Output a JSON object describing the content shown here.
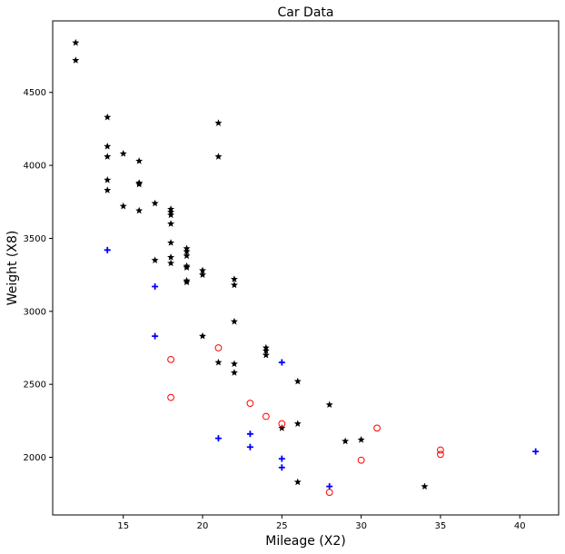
{
  "chart_data": {
    "type": "scatter",
    "title": "Car Data",
    "xlabel": "Mileage (X2)",
    "ylabel": "Weight (X8)",
    "xlim": [
      10.55,
      42.45
    ],
    "ylim": [
      1605,
      4990
    ],
    "xticks": [
      15,
      20,
      25,
      30,
      35,
      40
    ],
    "yticks": [
      2000,
      2500,
      3000,
      3500,
      4000,
      4500
    ],
    "grid": false,
    "series": [
      {
        "marker": "star",
        "color": "#000000",
        "points": [
          [
            12,
            4840
          ],
          [
            12,
            4720
          ],
          [
            14,
            4330
          ],
          [
            14,
            4130
          ],
          [
            14,
            4060
          ],
          [
            14,
            3900
          ],
          [
            14,
            3830
          ],
          [
            15,
            4080
          ],
          [
            15,
            3720
          ],
          [
            16,
            4030
          ],
          [
            16,
            3880
          ],
          [
            16,
            3870
          ],
          [
            16,
            3690
          ],
          [
            17,
            3740
          ],
          [
            17,
            3350
          ],
          [
            18,
            3700
          ],
          [
            18,
            3680
          ],
          [
            18,
            3660
          ],
          [
            18,
            3600
          ],
          [
            18,
            3470
          ],
          [
            18,
            3370
          ],
          [
            18,
            3330
          ],
          [
            19,
            3430
          ],
          [
            19,
            3410
          ],
          [
            19,
            3380
          ],
          [
            19,
            3310
          ],
          [
            19,
            3300
          ],
          [
            19,
            3210
          ],
          [
            19,
            3200
          ],
          [
            20,
            3280
          ],
          [
            20,
            3250
          ],
          [
            20,
            2830
          ],
          [
            21,
            4290
          ],
          [
            21,
            4060
          ],
          [
            21,
            2650
          ],
          [
            22,
            3220
          ],
          [
            22,
            3180
          ],
          [
            22,
            2930
          ],
          [
            22,
            2640
          ],
          [
            22,
            2580
          ],
          [
            24,
            2750
          ],
          [
            24,
            2730
          ],
          [
            24,
            2700
          ],
          [
            25,
            2200
          ],
          [
            26,
            2520
          ],
          [
            26,
            2230
          ],
          [
            26,
            1830
          ],
          [
            28,
            2360
          ],
          [
            29,
            2110
          ],
          [
            30,
            2120
          ],
          [
            34,
            1800
          ]
        ]
      },
      {
        "marker": "plus",
        "color": "#0000ff",
        "points": [
          [
            14,
            3420
          ],
          [
            17,
            3170
          ],
          [
            17,
            2830
          ],
          [
            21,
            2130
          ],
          [
            23,
            2160
          ],
          [
            23,
            2070
          ],
          [
            25,
            2650
          ],
          [
            25,
            1990
          ],
          [
            25,
            1930
          ],
          [
            28,
            1800
          ],
          [
            41,
            2040
          ]
        ]
      },
      {
        "marker": "circle",
        "color": "#ff0000",
        "points": [
          [
            18,
            2670
          ],
          [
            18,
            2410
          ],
          [
            21,
            2750
          ],
          [
            23,
            2370
          ],
          [
            24,
            2280
          ],
          [
            25,
            2230
          ],
          [
            28,
            1760
          ],
          [
            30,
            1980
          ],
          [
            31,
            2200
          ],
          [
            35,
            2050
          ],
          [
            35,
            2020
          ]
        ]
      }
    ]
  }
}
